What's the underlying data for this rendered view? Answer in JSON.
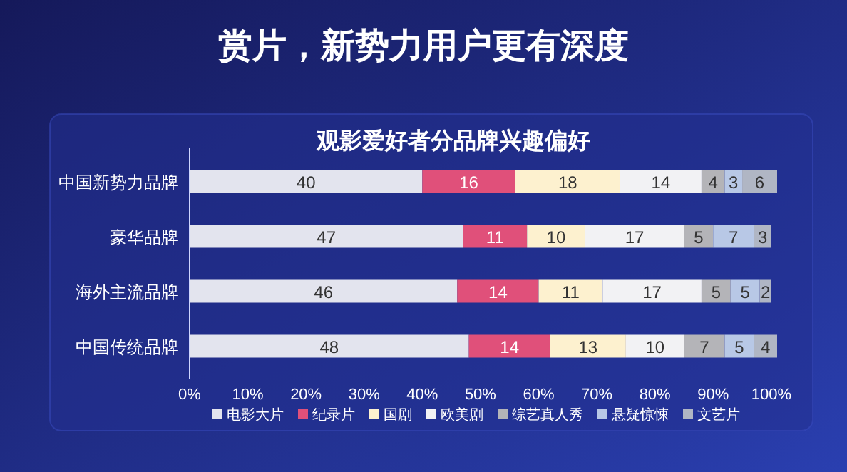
{
  "chart_data": {
    "type": "bar",
    "orientation": "horizontal",
    "stacked": true,
    "title": "赏片，新势力用户更有深度",
    "subtitle": "观影爱好者分品牌兴趣偏好",
    "categories": [
      "中国新势力品牌",
      "豪华品牌",
      "海外主流品牌",
      "中国传统品牌"
    ],
    "series": [
      {
        "name": "电影大片",
        "color": "#e3e4ee",
        "values": [
          40,
          47,
          46,
          48
        ]
      },
      {
        "name": "纪录片",
        "color": "#e0507a",
        "values": [
          16,
          11,
          14,
          14
        ]
      },
      {
        "name": "国剧",
        "color": "#fdf1cf",
        "values": [
          18,
          10,
          11,
          13
        ]
      },
      {
        "name": "欧美剧",
        "color": "#f2f2f4",
        "values": [
          14,
          17,
          17,
          10
        ]
      },
      {
        "name": "综艺真人秀",
        "color": "#b4b4b8",
        "values": [
          4,
          5,
          5,
          7
        ]
      },
      {
        "name": "悬疑惊悚",
        "color": "#b8c8e6",
        "values": [
          3,
          7,
          5,
          5
        ]
      },
      {
        "name": "文艺片",
        "color": "#b0b6c4",
        "values": [
          6,
          3,
          2,
          4
        ]
      }
    ],
    "xlim": [
      0,
      101
    ],
    "xticks": [
      {
        "value": 0,
        "label": "0%"
      },
      {
        "value": 10,
        "label": "10%"
      },
      {
        "value": 20,
        "label": "20%"
      },
      {
        "value": 30,
        "label": "30%"
      },
      {
        "value": 40,
        "label": "40%"
      },
      {
        "value": 50,
        "label": "50%"
      },
      {
        "value": 60,
        "label": "60%"
      },
      {
        "value": 70,
        "label": "70%"
      },
      {
        "value": 80,
        "label": "80%"
      },
      {
        "value": 90,
        "label": "90%"
      },
      {
        "value": 100,
        "label": "100%"
      }
    ],
    "data_labels": true,
    "legend": "bottom",
    "grid": false
  }
}
